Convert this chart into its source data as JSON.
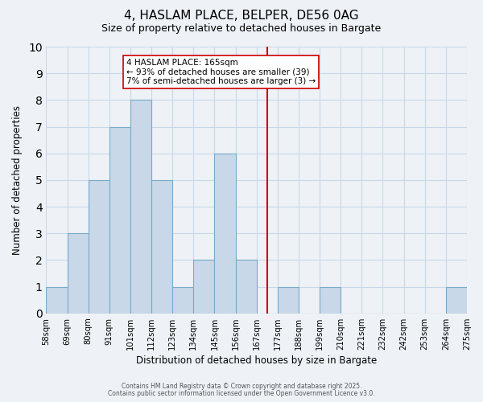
{
  "title_line1": "4, HASLAM PLACE, BELPER, DE56 0AG",
  "title_line2": "Size of property relative to detached houses in Bargate",
  "bar_labels": [
    "58sqm",
    "69sqm",
    "80sqm",
    "91sqm",
    "101sqm",
    "112sqm",
    "123sqm",
    "134sqm",
    "145sqm",
    "156sqm",
    "167sqm",
    "177sqm",
    "188sqm",
    "199sqm",
    "210sqm",
    "221sqm",
    "232sqm",
    "242sqm",
    "253sqm",
    "264sqm",
    "275sqm"
  ],
  "bar_heights": [
    1,
    3,
    5,
    7,
    8,
    5,
    1,
    2,
    6,
    2,
    0,
    1,
    0,
    1,
    0,
    0,
    0,
    0,
    0,
    1
  ],
  "bar_color": "#c8d8e8",
  "bar_edge_color": "#7aaac8",
  "vline_color": "#cc0000",
  "vline_position": 10.5,
  "annotation_title": "4 HASLAM PLACE: 165sqm",
  "annotation_line2": "← 93% of detached houses are smaller (39)",
  "annotation_line3": "7% of semi-detached houses are larger (3) →",
  "annotation_box_color": "#ffffff",
  "annotation_box_edge": "#cc0000",
  "xlabel": "Distribution of detached houses by size in Bargate",
  "ylabel": "Number of detached properties",
  "ylim": [
    0,
    10
  ],
  "yticks": [
    0,
    1,
    2,
    3,
    4,
    5,
    6,
    7,
    8,
    9,
    10
  ],
  "footnote1": "Contains HM Land Registry data © Crown copyright and database right 2025.",
  "footnote2": "Contains public sector information licensed under the Open Government Licence v3.0.",
  "bg_color": "#eef2f7",
  "grid_color": "#c8d8e8"
}
